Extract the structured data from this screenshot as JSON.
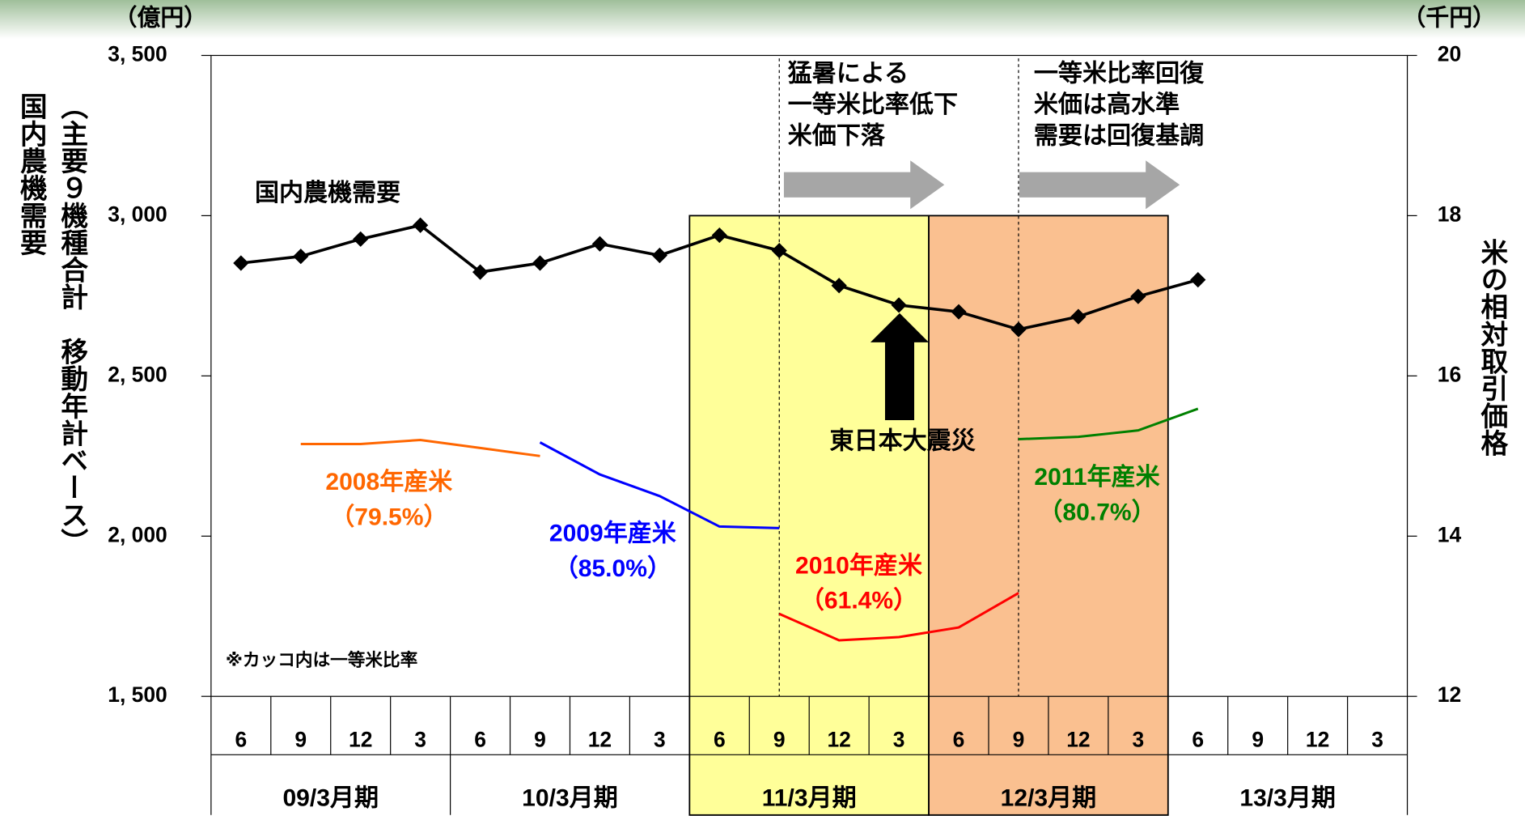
{
  "chart_data": {
    "type": "line",
    "y_unit": "（億円）",
    "y2_unit": "（千円）",
    "ylabel": "国内農機需要",
    "ylabel_sub": "（主要９機種合計　移動年計ベース）",
    "y2label": "米の相対取引価格",
    "categories": [
      "6",
      "9",
      "12",
      "3",
      "6",
      "9",
      "12",
      "3",
      "6",
      "9",
      "12",
      "3",
      "6",
      "9",
      "12",
      "3",
      "6",
      "9",
      "12",
      "3"
    ],
    "fiscal_periods": [
      "09/3月期",
      "10/3月期",
      "11/3月期",
      "12/3月期",
      "13/3月期"
    ],
    "ylim": [
      1500,
      3500
    ],
    "yticks": [
      {
        "value": 1500,
        "label": "1, 500"
      },
      {
        "value": 2000,
        "label": "2, 000"
      },
      {
        "value": 2500,
        "label": "2, 500"
      },
      {
        "value": 3000,
        "label": "3, 000"
      },
      {
        "value": 3500,
        "label": "3, 500"
      }
    ],
    "y2lim": [
      12,
      20
    ],
    "y2ticks": [
      12,
      14,
      16,
      18,
      20
    ],
    "series": [
      {
        "name": "国内農機需要",
        "color": "#000000",
        "values": [
          2852,
          2873,
          2927,
          2970,
          2824,
          2852,
          2912,
          2876,
          2939,
          2891,
          2782,
          2721,
          2700,
          2645,
          2685,
          2748,
          2800,
          null,
          null,
          null
        ]
      },
      {
        "name": "2008年産米",
        "ratio_label": "（79.5%）",
        "color": "#ff6600",
        "axis": "y2",
        "values": [
          null,
          15.15,
          15.15,
          15.2,
          15.1,
          15.0,
          null,
          null,
          null,
          null,
          null,
          null,
          null,
          null,
          null,
          null,
          null,
          null,
          null,
          null
        ]
      },
      {
        "name": "2009年産米",
        "ratio_label": "（85.0%）",
        "color": "#0000ff",
        "axis": "y2",
        "values": [
          null,
          null,
          null,
          null,
          null,
          15.17,
          14.77,
          14.5,
          14.12,
          14.1,
          null,
          null,
          null,
          null,
          null,
          null,
          null,
          null,
          null,
          null
        ]
      },
      {
        "name": "2010年産米",
        "ratio_label": "（61.4%）",
        "color": "#ff0000",
        "axis": "y2",
        "values": [
          null,
          null,
          null,
          null,
          null,
          null,
          null,
          null,
          null,
          13.03,
          12.7,
          12.74,
          12.86,
          13.29,
          null,
          null,
          null,
          null,
          null,
          null
        ]
      },
      {
        "name": "2011年産米",
        "ratio_label": "（80.7%）",
        "color": "#008000",
        "axis": "y2",
        "values": [
          null,
          null,
          null,
          null,
          null,
          null,
          null,
          null,
          null,
          null,
          null,
          null,
          null,
          15.21,
          15.24,
          15.32,
          15.59,
          null,
          null,
          null
        ]
      }
    ],
    "annotations": [
      {
        "lines": [
          "猛暑による",
          "一等米比率低下",
          "米価下落"
        ]
      },
      {
        "lines": [
          "一等米比率回復",
          "米価は高水準",
          "需要は回復基調"
        ]
      },
      {
        "text": "東日本大震災"
      },
      {
        "text": "※カッコ内は一等米比率"
      }
    ]
  }
}
